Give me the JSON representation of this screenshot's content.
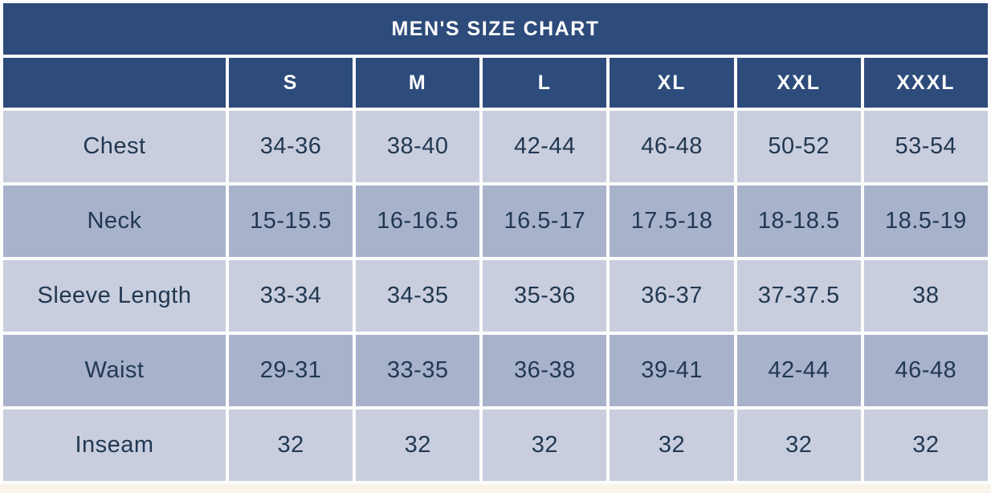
{
  "colors": {
    "navy": "#2d4b7b",
    "header_text": "#ffffff",
    "row_light": "#c9cede",
    "row_dark": "#a9b2cb",
    "cell_text": "#213852",
    "gap_white": "#fdfdfd",
    "page_background": "#f8f4ea"
  },
  "chart_data": {
    "type": "table",
    "title": "MEN'S SIZE CHART",
    "columns": [
      "",
      "S",
      "M",
      "L",
      "XL",
      "XXL",
      "XXXL"
    ],
    "rows": [
      {
        "label": "Chest",
        "values": [
          "34-36",
          "38-40",
          "42-44",
          "46-48",
          "50-52",
          "53-54"
        ]
      },
      {
        "label": "Neck",
        "values": [
          "15-15.5",
          "16-16.5",
          "16.5-17",
          "17.5-18",
          "18-18.5",
          "18.5-19"
        ]
      },
      {
        "label": "Sleeve Length",
        "values": [
          "33-34",
          "34-35",
          "35-36",
          "36-37",
          "37-37.5",
          "38"
        ]
      },
      {
        "label": "Waist",
        "values": [
          "29-31",
          "33-35",
          "36-38",
          "39-41",
          "42-44",
          "46-48"
        ]
      },
      {
        "label": "Inseam",
        "values": [
          "32",
          "32",
          "32",
          "32",
          "32",
          "32"
        ]
      }
    ]
  }
}
